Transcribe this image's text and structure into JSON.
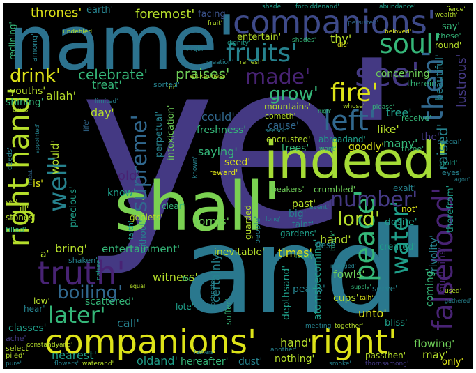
{
  "words": {
    "ye": "ye'",
    "and": "and'",
    "name": "name'",
    "shall": "shall'",
    "indeed": "indeed'",
    "companions_top": "companions'",
    "companions_bottom": "companions'",
    "right": "right'",
    "truth": "truth'",
    "fruits": "fruits'",
    "soul": "soul'",
    "see": "see'",
    "fire": "fire'",
    "left": "left'",
    "made": "made'",
    "grow": "grow'",
    "then": "then'",
    "number": "number'",
    "water": "water'",
    "peace": "peace'",
    "falsehood": "falsehood'",
    "later": "later'",
    "boiling": "boiling'",
    "well": "well'",
    "right_hand": "right hand'",
    "supreme": "supreme'",
    "lord": "lord'",
    "drink": "drink'",
    "celebrate": "celebrate'",
    "praises": "praises'",
    "thrones": "thrones'",
    "foremost": "foremost'",
    "facing": "facing'",
    "earth": "earth'",
    "allah": "allah'",
    "treat": "treat'",
    "youths": "youths'",
    "shining": "shining'",
    "day": "day'",
    "could": "could'",
    "cause": "cause'",
    "freshness": "freshness'",
    "tree": "tree'",
    "like": "like'",
    "many": "many'",
    "the": "the'",
    "raised": "raised'",
    "mountains": "mountains'",
    "cometh": "cometh'",
    "encrusted": "encrusted'",
    "abroadand": "abroadand'",
    "saying": "saying'",
    "trees": "trees'",
    "goodly": "goodly'",
    "seed": "seed'",
    "reward": "reward'",
    "perpetual": "perpetual'",
    "intoxication": "intoxication'",
    "old": "old'",
    "know": "know'",
    "would": "would'",
    "is": "is'",
    "precious": "precious'",
    "clear": "clear'",
    "forms": "forms'",
    "goblets": "goblets'",
    "beakers": "beakers'",
    "crumbled": "crumbled'",
    "exalt": "exalt'",
    "past": "past'",
    "big": "big'",
    "taint": "taint'",
    "gardens": "gardens'",
    "not": "not'",
    "desire": "desire'",
    "hand_mid": "hand'",
    "created": "created'",
    "times": "times'",
    "flesh": "flesh'",
    "bring": "bring'",
    "entertainment": "entertainment'",
    "inevitable": "inevitable'",
    "witness": "witness'",
    "fowls": "fowls'",
    "serve": "serve'",
    "pearls": "pearls'",
    "cups": "cups'",
    "low": "low'",
    "scattered": "scattered'",
    "unto": "unto'",
    "certainly": "certainly'",
    "depthsand": "depthsand'",
    "lote": "lote'",
    "call": "call'",
    "hear": "hear'",
    "classes": "classes'",
    "suffer": "suffer'",
    "hand_bottom": "hand'",
    "flowing": "flowing'",
    "may": "may'",
    "only": "only'",
    "nearest": "nearest'",
    "oldand": "oldand'",
    "hereafter": "hereafter'",
    "dust": "dust'",
    "nothing": "nothing'",
    "passthen": "passthen'",
    "fountains": "fountains'",
    "coming": "coming'",
    "bliss": "bliss'",
    "frivolity": "frivolity'",
    "lustrous": "lustrous'",
    "beautiful": "beautiful'",
    "therein": "therein'",
    "concerning": "concerning'",
    "round": "round'",
    "thy": "thy'",
    "entertain": "entertain'",
    "shades": "shades'",
    "say": "say'",
    "these": "these'",
    "wealth": "wealth'",
    "fierce": "fierce'",
    "shade": "shade'",
    "forbiddenand": "forbiddenand'",
    "abundance": "abundance'",
    "fruit": "fruit'",
    "undefiled": "undefiled'",
    "among": "among'",
    "reclining": "reclining'",
    "virgin": "virgin'",
    "dignity": "dignity'",
    "persisted": "persisted'",
    "die": "die'",
    "beloved": "beloved'",
    "creation": "creation'",
    "refresh": "refresh'",
    "wickedness": "wickedness'",
    "sorted": "sorted'",
    "in": "in'",
    "limited": "limited'",
    "whose": "whose'",
    "please": "please'",
    "high": "high'",
    "receive": "receive'",
    "season": "season'",
    "special": "special'",
    "three": "three'",
    "wont": "wont'",
    "gold": "gold'",
    "eyes": "eyes'",
    "agon": "agon'",
    "therefrom": "therefrom'",
    "known": "known'",
    "ill": "ill'",
    "stones": "stones'",
    "filled": "filled'",
    "a": "a'",
    "shaken": "shaken'",
    "nature": "nature'",
    "without": "without'",
    "faith": "faith'",
    "guarded": "guarded'",
    "people": "people'",
    "long": "long'",
    "event": "event'",
    "black": "black'",
    "indulged": "indulged'",
    "luxury": "luxury'",
    "equal": "equal'",
    "for": "for'",
    "atomsbecoming": "atomsbecoming'",
    "supply": "supply'",
    "talh": "talh'",
    "used": "used'",
    "gathered": "gathered'",
    "obstinately": "obstinately'",
    "meeting": "meeting'",
    "together": "together'",
    "ache": "ache'",
    "select": "select'",
    "piled": "piled'",
    "pure": "pure'",
    "constantlyand": "constantlyand'",
    "flowers": "flowers'",
    "waterand": "waterand'",
    "another": "another'",
    "fathers": "fathers'",
    "smoke": "smoke'",
    "thornsamong": "thornsamong'",
    "times_small": "times'",
    "life": "life'",
    "midst": "midst'",
    "yea": "yea'",
    "appointed": "appointed'",
    "deeds": "deeds'"
  },
  "palette": {
    "background": "#000000",
    "dark_purple": "#482374",
    "violet": "#443983",
    "indigo": "#3b528b",
    "blue": "#31688e",
    "teal": "#26828e",
    "sea": "#1f9e89",
    "green": "#35b779",
    "lime": "#6ece58",
    "yellow_green": "#b5de2b",
    "yellow": "#dde318"
  }
}
